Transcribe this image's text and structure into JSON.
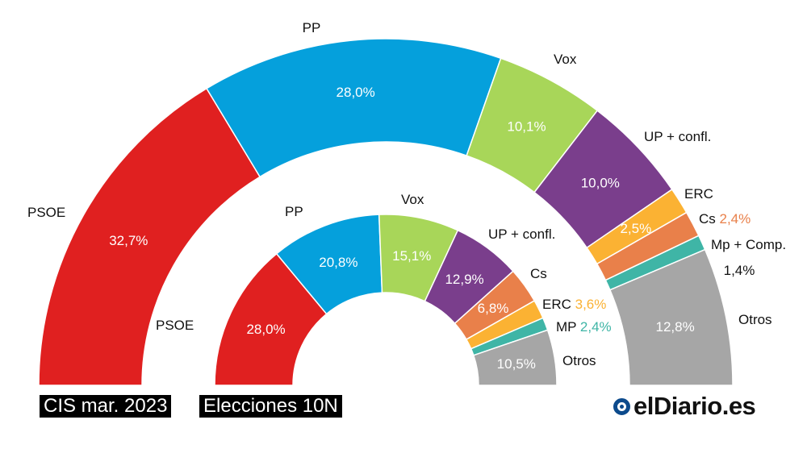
{
  "chart_data": [
    {
      "type": "pie",
      "variant": "half-donut",
      "title": "CIS mar. 2023",
      "categories": [
        "PSOE",
        "PP",
        "Vox",
        "UP + confl.",
        "ERC",
        "Cs",
        "Mp + Comp.",
        "Otros"
      ],
      "values": [
        32.7,
        28.0,
        10.1,
        10.0,
        2.5,
        2.4,
        1.4,
        12.8
      ],
      "value_labels": [
        "32,7%",
        "28,0%",
        "10,1%",
        "10,0%",
        "2,5%",
        "2,4%",
        "1,4%",
        "12,8%"
      ],
      "colors": [
        "#e02020",
        "#05a0dc",
        "#a8d659",
        "#7a3e8c",
        "#fbb233",
        "#e9804a",
        "#3fb5a6",
        "#a6a6a6"
      ]
    },
    {
      "type": "pie",
      "variant": "half-donut",
      "title": "Elecciones 10N",
      "categories": [
        "PSOE",
        "PP",
        "Vox",
        "UP + confl.",
        "Cs",
        "ERC",
        "MP",
        "Otros"
      ],
      "values": [
        28.0,
        20.8,
        15.1,
        12.9,
        6.8,
        3.6,
        2.4,
        10.5
      ],
      "value_labels": [
        "28,0%",
        "20,8%",
        "15,1%",
        "12,9%",
        "6,8%",
        "3,6%",
        "2,4%",
        "10,5%"
      ],
      "colors": [
        "#e02020",
        "#05a0dc",
        "#a8d659",
        "#7a3e8c",
        "#e9804a",
        "#fbb233",
        "#3fb5a6",
        "#a6a6a6"
      ]
    }
  ],
  "brand": {
    "text": "elDiario.es",
    "color": "#0c4a8c"
  }
}
